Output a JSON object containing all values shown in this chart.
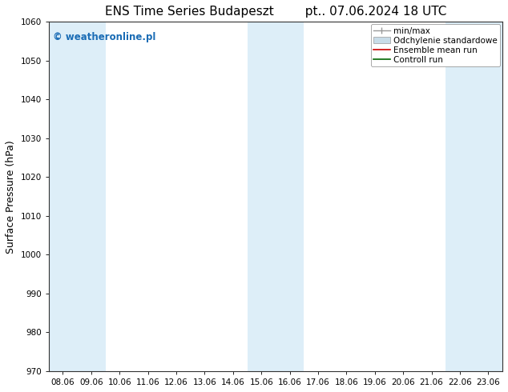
{
  "title_left": "ENS Time Series Budapeszt",
  "title_right": "pt.. 07.06.2024 18 UTC",
  "ylabel": "Surface Pressure (hPa)",
  "ylim": [
    970,
    1060
  ],
  "yticks": [
    970,
    980,
    990,
    1000,
    1010,
    1020,
    1030,
    1040,
    1050,
    1060
  ],
  "xtick_labels": [
    "08.06",
    "09.06",
    "10.06",
    "11.06",
    "12.06",
    "13.06",
    "14.06",
    "15.06",
    "16.06",
    "17.06",
    "18.06",
    "19.06",
    "20.06",
    "21.06",
    "22.06",
    "23.06"
  ],
  "shaded_bands_idx": [
    0,
    1,
    7,
    8,
    14,
    15
  ],
  "shaded_color": "#ddeef8",
  "watermark": "© weatheronline.pl",
  "watermark_color": "#1a6cb5",
  "bg_color": "#ffffff",
  "plot_bg_color": "#ffffff",
  "tick_label_fontsize": 7.5,
  "title_fontsize": 11,
  "ylabel_fontsize": 9,
  "legend_fontsize": 7.5
}
